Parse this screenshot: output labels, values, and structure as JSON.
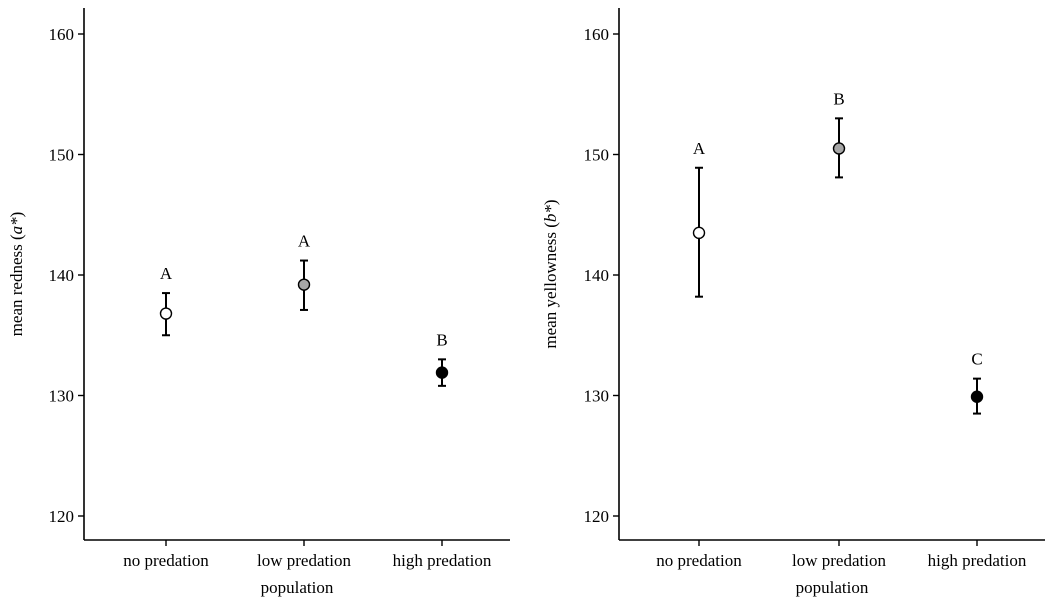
{
  "chart_data": [
    {
      "type": "scatter",
      "title": "",
      "xlabel": "population",
      "ylabel_text": "mean redness (",
      "ylabel_italic": "a*",
      "ylabel_close": ")",
      "ylim": [
        118,
        162
      ],
      "yticks": [
        120,
        130,
        140,
        150,
        160
      ],
      "ytick_labels": [
        "120",
        "130",
        "140",
        "150",
        "160"
      ],
      "grid": false,
      "categories": [
        "no predation",
        "low predation",
        "high predation"
      ],
      "points": [
        {
          "category": "no predation",
          "mean": 136.8,
          "lower": 135.0,
          "upper": 138.5,
          "letter": "A",
          "fill": "#ffffff"
        },
        {
          "category": "low predation",
          "mean": 139.2,
          "lower": 137.1,
          "upper": 141.2,
          "letter": "A",
          "fill": "#a6a6a6"
        },
        {
          "category": "high predation",
          "mean": 131.9,
          "lower": 130.8,
          "upper": 133.0,
          "letter": "B",
          "fill": "#000000"
        }
      ]
    },
    {
      "type": "scatter",
      "title": "",
      "xlabel": "population",
      "ylabel_text": "mean yellowness (",
      "ylabel_italic": "b*",
      "ylabel_close": ")",
      "ylim": [
        118,
        162
      ],
      "yticks": [
        120,
        130,
        140,
        150,
        160
      ],
      "ytick_labels": [
        "120",
        "130",
        "140",
        "150",
        "160"
      ],
      "grid": false,
      "categories": [
        "no predation",
        "low predation",
        "high predation"
      ],
      "points": [
        {
          "category": "no predation",
          "mean": 143.5,
          "lower": 138.2,
          "upper": 148.9,
          "letter": "A",
          "fill": "#ffffff"
        },
        {
          "category": "low predation",
          "mean": 150.5,
          "lower": 148.1,
          "upper": 153.0,
          "letter": "B",
          "fill": "#a6a6a6"
        },
        {
          "category": "high predation",
          "mean": 129.9,
          "lower": 128.5,
          "upper": 131.4,
          "letter": "C",
          "fill": "#000000"
        }
      ]
    }
  ]
}
